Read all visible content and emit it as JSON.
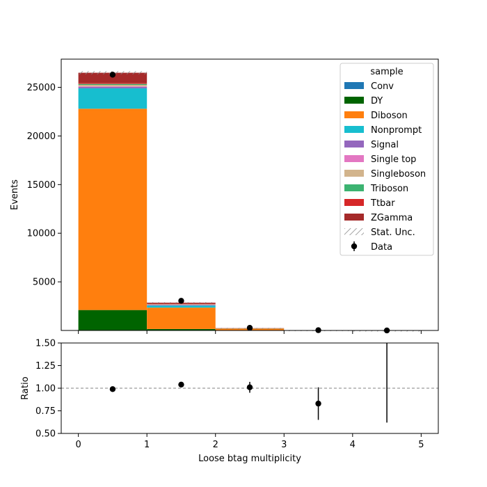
{
  "chart_data": [
    {
      "type": "bar",
      "stacked": true,
      "xlabel": "",
      "ylabel": "Events",
      "xlim": [
        -0.25,
        5.25
      ],
      "ylim": [
        0,
        27900
      ],
      "y_ticks": [
        5000,
        10000,
        15000,
        20000,
        25000
      ],
      "bin_edges": [
        0,
        1,
        2,
        3,
        4,
        5
      ],
      "legend": {
        "title": "sample",
        "placement": "top-right"
      },
      "series": [
        {
          "name": "Conv",
          "color": "#1f77b4",
          "values": [
            0,
            0,
            0,
            0,
            0
          ]
        },
        {
          "name": "DY",
          "color": "#006400",
          "values": [
            2100,
            150,
            30,
            5,
            0
          ]
        },
        {
          "name": "Diboson",
          "color": "#ff7f0e",
          "values": [
            20700,
            2200,
            170,
            20,
            2
          ]
        },
        {
          "name": "Nonprompt",
          "color": "#17becf",
          "values": [
            2100,
            220,
            15,
            2,
            0
          ]
        },
        {
          "name": "Signal",
          "color": "#9467bd",
          "values": [
            150,
            40,
            3,
            0,
            0
          ]
        },
        {
          "name": "Single top",
          "color": "#e377c2",
          "values": [
            50,
            30,
            5,
            0,
            0
          ]
        },
        {
          "name": "Singleboson",
          "color": "#d2b48c",
          "values": [
            150,
            50,
            5,
            1,
            0
          ]
        },
        {
          "name": "Triboson",
          "color": "#3cb371",
          "values": [
            100,
            15,
            2,
            0,
            0
          ]
        },
        {
          "name": "Ttbar",
          "color": "#d62728",
          "values": [
            100,
            40,
            10,
            2,
            0
          ]
        },
        {
          "name": "ZGamma",
          "color": "#a52a2a",
          "values": [
            1050,
            110,
            10,
            2,
            0
          ]
        }
      ],
      "stat_unc_label": "Stat. Unc.",
      "data": {
        "name": "Data",
        "x": [
          0.5,
          1.5,
          2.5,
          3.5,
          4.5
        ],
        "y": [
          26300,
          3050,
          270,
          28,
          2
        ]
      }
    },
    {
      "type": "scatter",
      "xlabel": "Loose btag multiplicity",
      "ylabel": "Ratio",
      "xlim": [
        -0.25,
        5.25
      ],
      "ylim": [
        0.5,
        1.5
      ],
      "x_ticks": [
        0,
        1,
        2,
        3,
        4,
        5
      ],
      "y_ticks": [
        "0.50",
        "0.75",
        "1.00",
        "1.25",
        "1.50"
      ],
      "reference_line": 1.0,
      "points": [
        {
          "x": 0.5,
          "y": 0.99,
          "err": 0.006
        },
        {
          "x": 1.5,
          "y": 1.04,
          "err": 0.02
        },
        {
          "x": 2.5,
          "y": 1.01,
          "err": 0.06
        },
        {
          "x": 3.5,
          "y": 0.83,
          "err": 0.18
        },
        {
          "x": 4.5,
          "y": null,
          "err_low": 0.62,
          "err_high": 1.5
        }
      ]
    }
  ]
}
